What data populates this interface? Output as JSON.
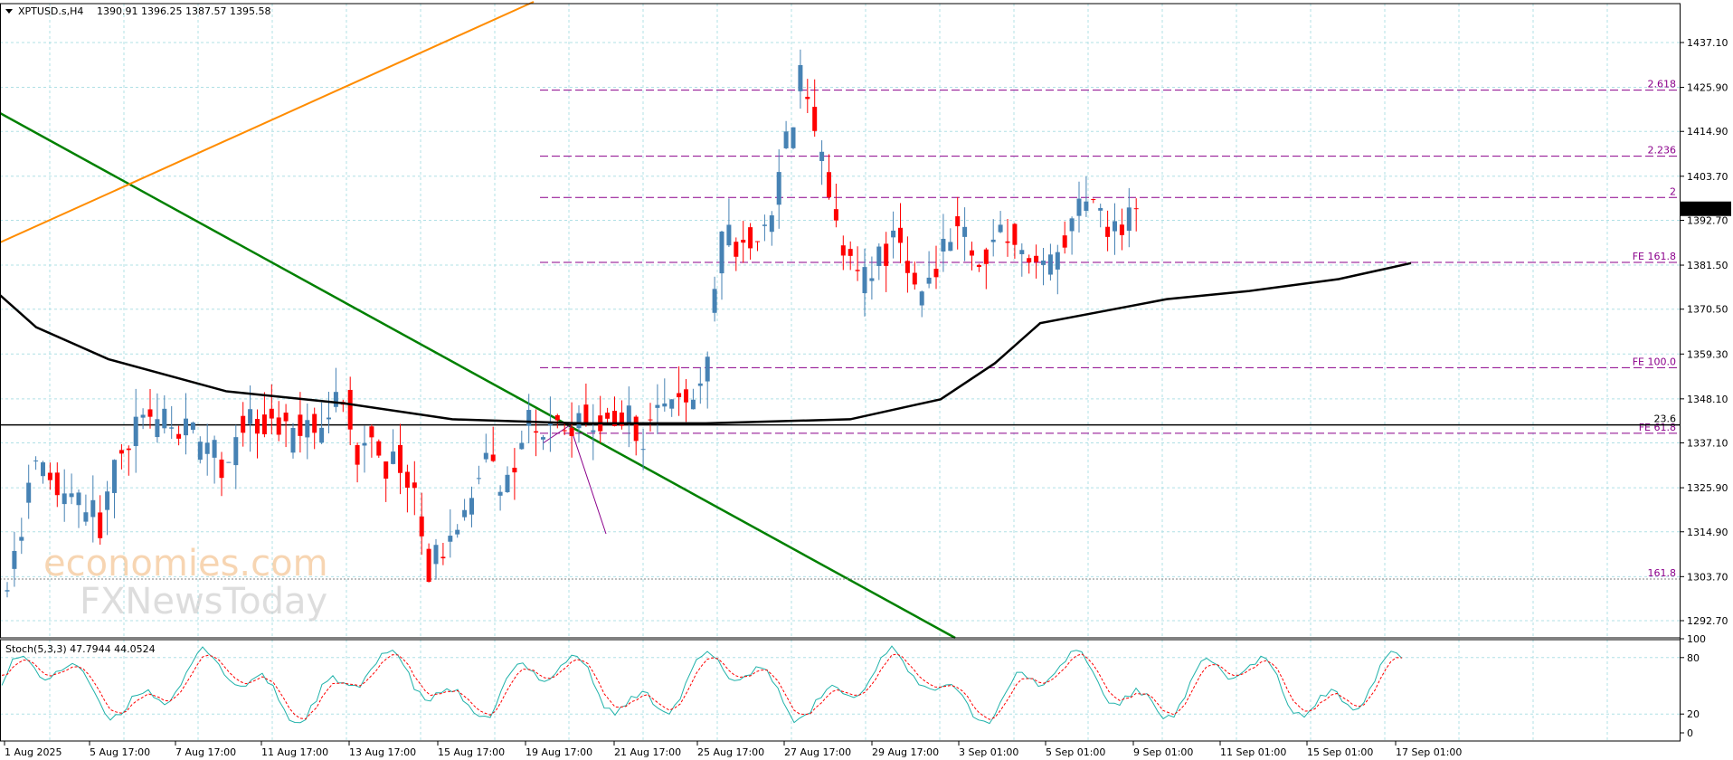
{
  "header": {
    "symbol": "XPTUSD.s,H4",
    "ohlc": "1390.91 1396.25 1387.57 1395.58"
  },
  "stoch_header": {
    "label": "Stoch(5,3,3) 47.7944 44.0524"
  },
  "current_price": "1395.58",
  "watermark": {
    "line1": "economies.com",
    "line2": "FXNewsToday"
  },
  "colors": {
    "bull": "#4682b4",
    "bear": "#ff0000",
    "ma": "#000000",
    "fib": "#8b008b",
    "green_trend": "#008000",
    "orange_trend": "#ff8c00",
    "grid": "#b0e0e6",
    "stoch_main": "#20b2aa",
    "stoch_signal": "#ff0000"
  },
  "chart_data": {
    "type": "candlestick",
    "price_axis": {
      "ticks": [
        "1437.10",
        "1425.90",
        "1414.90",
        "1403.70",
        "1392.70",
        "1381.50",
        "1370.50",
        "1359.30",
        "1348.10",
        "1337.10",
        "1325.90",
        "1314.90",
        "1303.70",
        "1292.70"
      ],
      "ylim": [
        1287.0,
        1449.0
      ]
    },
    "time_axis": {
      "labels": [
        "1 Aug 2025",
        "5 Aug 17:00",
        "7 Aug 17:00",
        "11 Aug 17:00",
        "13 Aug 17:00",
        "15 Aug 17:00",
        "19 Aug 17:00",
        "21 Aug 17:00",
        "25 Aug 17:00",
        "27 Aug 17:00",
        "29 Aug 17:00",
        "3 Sep 01:00",
        "5 Sep 01:00",
        "9 Sep 01:00",
        "11 Sep 01:00",
        "15 Sep 01:00",
        "17 Sep 01:00"
      ]
    },
    "levels": [
      {
        "label": "2.618",
        "price": 1425.2
      },
      {
        "label": "2.236",
        "price": 1408.7
      },
      {
        "label": "2",
        "price": 1398.4
      },
      {
        "label": "FE 161.8",
        "price": 1382.2
      },
      {
        "label": "FE 100.0",
        "price": 1355.9
      },
      {
        "label": "FE 61.8",
        "price": 1339.5
      }
    ],
    "horizontal_lines": [
      {
        "label": "23.6",
        "price": 1341.6
      },
      {
        "label": "161.8",
        "price": 1303.1
      }
    ],
    "stoch_axis": {
      "ticks": [
        "100",
        "80",
        "20",
        "0"
      ]
    }
  }
}
